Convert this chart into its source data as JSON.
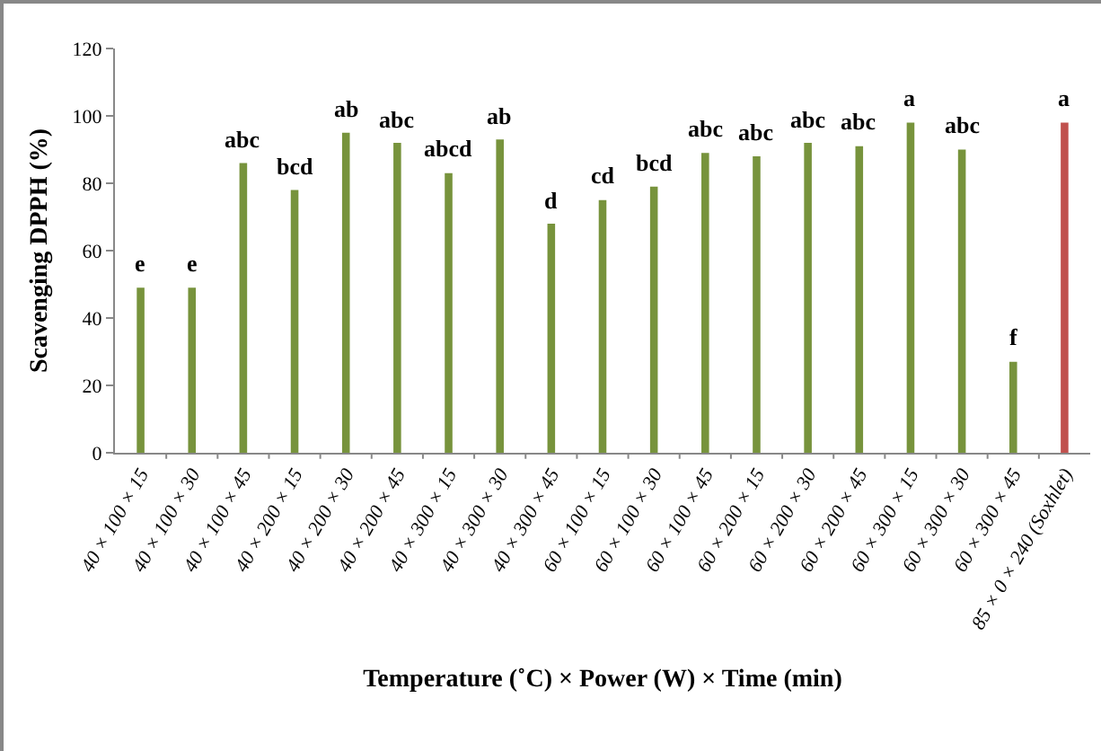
{
  "chart_data": {
    "type": "bar",
    "xlabel": "Temperature (˚C) × Power (W) × Time (min)",
    "ylabel": "Scavenging DPPH (%)",
    "categories": [
      "40 × 100 × 15",
      "40 × 100 × 30",
      "40 × 100 × 45",
      "40 × 200 × 15",
      "40 × 200 × 30",
      "40 × 200 × 45",
      "40 × 300 × 15",
      "40 × 300 × 30",
      "40 × 300 × 45",
      "60 × 100 × 15",
      "60 × 100 × 30",
      "60 × 100 × 45",
      "60 × 200 × 15",
      "60 × 200 × 30",
      "60 × 200 × 45",
      "60 × 300 × 15",
      "60 × 300 × 30",
      "60 × 300 × 45",
      "85 × 0 × 240 (Soxhlet)"
    ],
    "values": [
      49,
      49,
      86,
      78,
      95,
      92,
      83,
      93,
      68,
      75,
      79,
      89,
      88,
      92,
      91,
      98,
      90,
      27,
      98
    ],
    "colors": [
      "#77933c",
      "#77933c",
      "#77933c",
      "#77933c",
      "#77933c",
      "#77933c",
      "#77933c",
      "#77933c",
      "#77933c",
      "#77933c",
      "#77933c",
      "#77933c",
      "#77933c",
      "#77933c",
      "#77933c",
      "#77933c",
      "#77933c",
      "#77933c",
      "#c0504d"
    ],
    "ylim": [
      0,
      120
    ],
    "yticks": [
      0,
      20,
      40,
      60,
      80,
      100,
      120
    ],
    "grid": false,
    "annotations": [
      {
        "text": "e",
        "x": "40 × 100 × 15",
        "y": 49
      },
      {
        "text": "e",
        "x": "40 × 100 × 30",
        "y": 49
      },
      {
        "text": "abc",
        "x": "40 × 100 × 45",
        "y": 86
      },
      {
        "text": "bcd",
        "x": "40 × 200 × 15",
        "y": 78
      },
      {
        "text": "ab",
        "x": "40 × 200 × 30",
        "y": 95
      },
      {
        "text": "abc",
        "x": "40 × 200 × 45",
        "y": 92
      },
      {
        "text": "abcd",
        "x": "40 × 300 × 15",
        "y": 83
      },
      {
        "text": "ab",
        "x": "40 × 300 × 30",
        "y": 93
      },
      {
        "text": "d",
        "x": "40 × 300 × 45",
        "y": 68
      },
      {
        "text": "cd",
        "x": "60 × 100 × 15",
        "y": 75
      },
      {
        "text": "bcd",
        "x": "60 × 100 × 30",
        "y": 79
      },
      {
        "text": "abc",
        "x": "60 × 100 × 45",
        "y": 89
      },
      {
        "text": "abc",
        "x": "60 × 200 × 15",
        "y": 88
      },
      {
        "text": "abc",
        "x": "60 × 200 × 30",
        "y": 92
      },
      {
        "text": "abc",
        "x": "60 × 200 × 45",
        "y": 91
      },
      {
        "text": "a",
        "x": "60 × 300 × 15",
        "y": 98
      },
      {
        "text": "abc",
        "x": "60 × 300 × 30",
        "y": 90
      },
      {
        "text": "f",
        "x": "60 × 300 × 45",
        "y": 27
      },
      {
        "text": "a",
        "x": "85 × 0 × 240 (Soxhlet)",
        "y": 98
      }
    ]
  }
}
